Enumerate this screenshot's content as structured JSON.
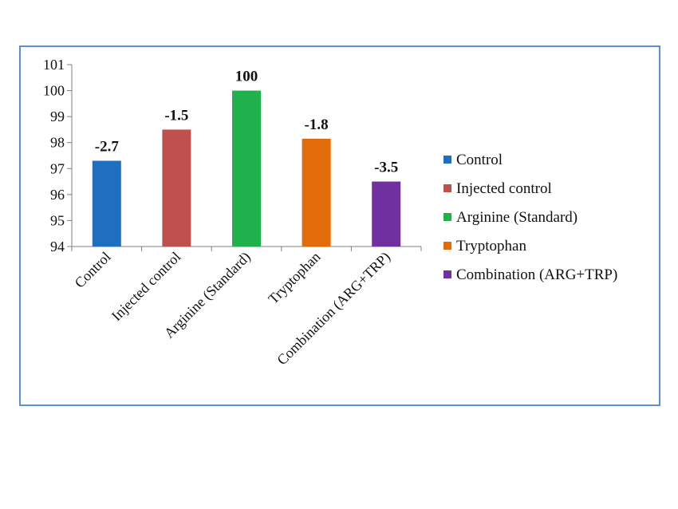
{
  "chart_data": {
    "type": "bar",
    "categories": [
      "Control",
      "Injected control",
      "Arginine (Standard)",
      "Tryptophan",
      "Combination (ARG+TRP)"
    ],
    "values": [
      97.3,
      98.5,
      100,
      98.15,
      96.5
    ],
    "data_labels": [
      "-2.7",
      "-1.5",
      "100",
      "-1.8",
      "-3.5"
    ],
    "colors": [
      "#1f6fc0",
      "#c0504d",
      "#21b14c",
      "#e36c0a",
      "#7030a0"
    ],
    "ylim": [
      94,
      101
    ],
    "yticks": [
      94,
      95,
      96,
      97,
      98,
      99,
      100,
      101
    ],
    "ytick_labels": [
      "94",
      "95",
      "96",
      "97",
      "98",
      "99",
      "100",
      "101"
    ],
    "title": "",
    "xlabel": "",
    "ylabel": "",
    "grid": false,
    "legend": {
      "position": "right",
      "entries": [
        "Control",
        "Injected control",
        "Arginine (Standard)",
        "Tryptophan",
        "Combination (ARG+TRP)"
      ]
    }
  }
}
